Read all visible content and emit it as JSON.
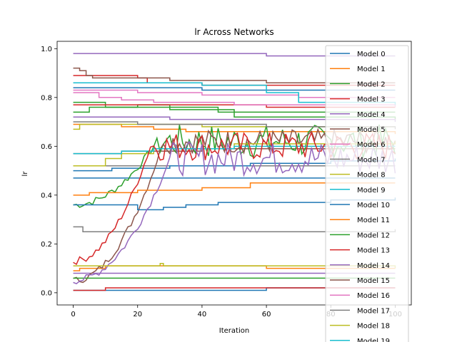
{
  "chart_data": {
    "type": "line",
    "title": "lr Across Networks",
    "xlabel": "Iteration",
    "ylabel": "lr",
    "xlim": [
      -5,
      105
    ],
    "ylim": [
      -0.05,
      1.03
    ],
    "xticks": [
      0,
      20,
      40,
      60,
      80,
      100
    ],
    "yticks": [
      0.0,
      0.2,
      0.4,
      0.6,
      0.8,
      1.0
    ],
    "ytick_labels": [
      "0.0",
      "0.2",
      "0.4",
      "0.6",
      "0.8",
      "1.0"
    ],
    "grid": false,
    "legend_position": "right",
    "series": [
      {
        "name": "Model 0",
        "color": "#1f77b4",
        "style": "steps",
        "start": 0.5,
        "points": [
          [
            0,
            0.5
          ],
          [
            12,
            0.51
          ],
          [
            30,
            0.52
          ],
          [
            55,
            0.53
          ],
          [
            80,
            0.54
          ],
          [
            100,
            0.55
          ]
        ]
      },
      {
        "name": "Model 1",
        "color": "#ff7f0e",
        "style": "steps",
        "start": 0.09,
        "points": [
          [
            0,
            0.09
          ],
          [
            2,
            0.1
          ],
          [
            5,
            0.1
          ],
          [
            10,
            0.11
          ],
          [
            30,
            0.11
          ],
          [
            60,
            0.1
          ],
          [
            100,
            0.1
          ]
        ]
      },
      {
        "name": "Model 2",
        "color": "#2ca02c",
        "style": "noisy",
        "start": 0.36,
        "rise_end": 26,
        "level": 0.62,
        "amp": 0.07
      },
      {
        "name": "Model 3",
        "color": "#d62728",
        "style": "steps",
        "start": 0.89,
        "points": [
          [
            0,
            0.89
          ],
          [
            20,
            0.88
          ],
          [
            23,
            0.86
          ],
          [
            40,
            0.85
          ],
          [
            100,
            0.85
          ]
        ]
      },
      {
        "name": "Model 4",
        "color": "#9467bd",
        "style": "steps",
        "start": 0.98,
        "points": [
          [
            0,
            0.98
          ],
          [
            30,
            0.98
          ],
          [
            60,
            0.97
          ],
          [
            100,
            0.97
          ]
        ]
      },
      {
        "name": "Model 5",
        "color": "#8c564b",
        "style": "noisy",
        "start": 0.05,
        "rise_end": 28,
        "level": 0.62,
        "amp": 0.05
      },
      {
        "name": "Model 6",
        "color": "#e377c2",
        "style": "steps",
        "start": 0.82,
        "points": [
          [
            0,
            0.82
          ],
          [
            8,
            0.8
          ],
          [
            15,
            0.79
          ],
          [
            25,
            0.78
          ],
          [
            50,
            0.77
          ],
          [
            100,
            0.76
          ]
        ]
      },
      {
        "name": "Model 7",
        "color": "#7f7f7f",
        "style": "steps",
        "start": 0.27,
        "points": [
          [
            0,
            0.27
          ],
          [
            3,
            0.25
          ],
          [
            50,
            0.25
          ],
          [
            80,
            0.25
          ],
          [
            100,
            0.26
          ]
        ]
      },
      {
        "name": "Model 8",
        "color": "#bcbd22",
        "style": "steps",
        "start": 0.52,
        "points": [
          [
            0,
            0.52
          ],
          [
            10,
            0.55
          ],
          [
            15,
            0.57
          ],
          [
            25,
            0.59
          ],
          [
            50,
            0.61
          ],
          [
            100,
            0.62
          ]
        ]
      },
      {
        "name": "Model 9",
        "color": "#17becf",
        "style": "steps",
        "start": 0.57,
        "points": [
          [
            0,
            0.57
          ],
          [
            15,
            0.58
          ],
          [
            25,
            0.59
          ],
          [
            50,
            0.6
          ],
          [
            100,
            0.6
          ]
        ]
      },
      {
        "name": "Model 10",
        "color": "#1f77b4",
        "style": "steps",
        "start": 0.36,
        "points": [
          [
            0,
            0.36
          ],
          [
            20,
            0.34
          ],
          [
            28,
            0.35
          ],
          [
            35,
            0.36
          ],
          [
            45,
            0.37
          ],
          [
            60,
            0.37
          ],
          [
            80,
            0.38
          ],
          [
            100,
            0.39
          ]
        ]
      },
      {
        "name": "Model 11",
        "color": "#ff7f0e",
        "style": "steps",
        "start": 0.4,
        "points": [
          [
            0,
            0.4
          ],
          [
            5,
            0.41
          ],
          [
            20,
            0.42
          ],
          [
            40,
            0.43
          ],
          [
            55,
            0.45
          ],
          [
            100,
            0.45
          ]
        ]
      },
      {
        "name": "Model 12",
        "color": "#2ca02c",
        "style": "steps",
        "start": 0.06,
        "points": [
          [
            0,
            0.06
          ],
          [
            20,
            0.06
          ],
          [
            40,
            0.06
          ],
          [
            60,
            0.06
          ],
          [
            100,
            0.06
          ]
        ]
      },
      {
        "name": "Model 13",
        "color": "#d62728",
        "style": "noisy",
        "start": 0.13,
        "rise_end": 24,
        "level": 0.6,
        "amp": 0.06
      },
      {
        "name": "Model 14",
        "color": "#9467bd",
        "style": "noisy",
        "start": 0.05,
        "rise_end": 30,
        "level": 0.55,
        "amp": 0.07
      },
      {
        "name": "Model 15",
        "color": "#8c564b",
        "style": "steps",
        "start": 0.92,
        "points": [
          [
            0,
            0.92
          ],
          [
            2,
            0.91
          ],
          [
            4,
            0.89
          ],
          [
            6,
            0.88
          ],
          [
            30,
            0.87
          ],
          [
            60,
            0.86
          ],
          [
            100,
            0.86
          ]
        ]
      },
      {
        "name": "Model 16",
        "color": "#e377c2",
        "style": "steps",
        "start": 0.83,
        "points": [
          [
            0,
            0.83
          ],
          [
            20,
            0.82
          ],
          [
            40,
            0.81
          ],
          [
            70,
            0.8
          ],
          [
            100,
            0.8
          ]
        ]
      },
      {
        "name": "Model 17",
        "color": "#7f7f7f",
        "style": "steps",
        "start": 0.7,
        "points": [
          [
            0,
            0.7
          ],
          [
            20,
            0.69
          ],
          [
            40,
            0.69
          ],
          [
            60,
            0.68
          ],
          [
            100,
            0.67
          ]
        ]
      },
      {
        "name": "Model 18",
        "color": "#bcbd22",
        "style": "steps",
        "start": 0.11,
        "points": [
          [
            0,
            0.11
          ],
          [
            27,
            0.12
          ],
          [
            28,
            0.11
          ],
          [
            60,
            0.11
          ],
          [
            100,
            0.1
          ]
        ]
      },
      {
        "name": "Model 19",
        "color": "#17becf",
        "style": "steps",
        "start": 0.86,
        "points": [
          [
            0,
            0.86
          ],
          [
            20,
            0.86
          ],
          [
            40,
            0.85
          ],
          [
            60,
            0.82
          ],
          [
            70,
            0.78
          ],
          [
            100,
            0.77
          ]
        ]
      }
    ],
    "extra_lines": [
      {
        "color": "#1f77b4",
        "points": [
          [
            0,
            0.01
          ],
          [
            20,
            0.01
          ],
          [
            60,
            0.02
          ],
          [
            100,
            0.02
          ]
        ]
      },
      {
        "color": "#d62728",
        "points": [
          [
            0,
            0.01
          ],
          [
            10,
            0.02
          ],
          [
            40,
            0.02
          ],
          [
            100,
            0.02
          ]
        ]
      },
      {
        "color": "#2ca02c",
        "points": [
          [
            0,
            0.78
          ],
          [
            10,
            0.76
          ],
          [
            30,
            0.76
          ],
          [
            45,
            0.74
          ],
          [
            100,
            0.74
          ]
        ]
      },
      {
        "color": "#2ca02c",
        "points": [
          [
            0,
            0.74
          ],
          [
            5,
            0.76
          ],
          [
            20,
            0.77
          ],
          [
            30,
            0.75
          ],
          [
            50,
            0.72
          ],
          [
            100,
            0.71
          ]
        ]
      },
      {
        "color": "#9467bd",
        "points": [
          [
            0,
            0.72
          ],
          [
            10,
            0.72
          ],
          [
            30,
            0.71
          ],
          [
            50,
            0.71
          ],
          [
            100,
            0.7
          ]
        ]
      },
      {
        "color": "#ff7f0e",
        "points": [
          [
            0,
            0.69
          ],
          [
            15,
            0.68
          ],
          [
            25,
            0.67
          ],
          [
            35,
            0.66
          ],
          [
            60,
            0.66
          ],
          [
            100,
            0.65
          ]
        ]
      },
      {
        "color": "#d62728",
        "points": [
          [
            0,
            0.77
          ],
          [
            20,
            0.77
          ],
          [
            40,
            0.77
          ],
          [
            60,
            0.76
          ],
          [
            100,
            0.76
          ]
        ]
      },
      {
        "color": "#1f77b4",
        "points": [
          [
            0,
            0.84
          ],
          [
            20,
            0.84
          ],
          [
            40,
            0.83
          ],
          [
            60,
            0.83
          ],
          [
            100,
            0.83
          ]
        ]
      },
      {
        "color": "#bcbd22",
        "points": [
          [
            0,
            0.67
          ],
          [
            2,
            0.69
          ],
          [
            20,
            0.69
          ],
          [
            40,
            0.68
          ],
          [
            100,
            0.68
          ]
        ]
      },
      {
        "color": "#8c564b",
        "points": [
          [
            0,
            0.57
          ],
          [
            15,
            0.58
          ],
          [
            40,
            0.59
          ],
          [
            100,
            0.59
          ]
        ]
      },
      {
        "color": "#7f7f7f",
        "points": [
          [
            0,
            0.52
          ],
          [
            15,
            0.52
          ],
          [
            40,
            0.52
          ],
          [
            100,
            0.52
          ]
        ]
      },
      {
        "color": "#1f77b4",
        "points": [
          [
            0,
            0.47
          ],
          [
            20,
            0.47
          ],
          [
            60,
            0.47
          ],
          [
            100,
            0.47
          ]
        ]
      },
      {
        "color": "#9467bd",
        "points": [
          [
            0,
            0.08
          ],
          [
            30,
            0.08
          ],
          [
            60,
            0.08
          ],
          [
            100,
            0.08
          ]
        ]
      }
    ]
  }
}
